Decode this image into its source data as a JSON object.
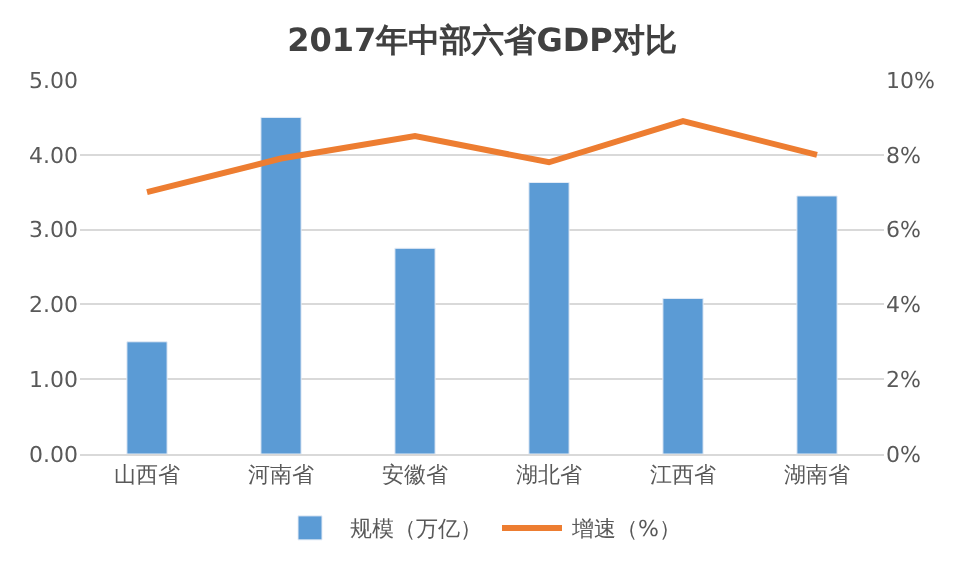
{
  "chart_data": {
    "type": "bar",
    "title": "2017年中部六省GDP对比",
    "categories": [
      "山西省",
      "河南省",
      "安徽省",
      "湖北省",
      "江西省",
      "湖南省"
    ],
    "series": [
      {
        "name": "规模（万亿）",
        "color": "#5b9bd5",
        "values": [
          1.5,
          4.5,
          2.75,
          3.63,
          2.08,
          3.45
        ]
      },
      {
        "name": "增速（%）",
        "color": "#ed7d31",
        "type": "line",
        "axis": "y2",
        "marker": "none",
        "values": [
          7.0,
          7.9,
          8.5,
          7.8,
          8.9,
          8.0
        ]
      }
    ],
    "ylim": [
      0,
      5
    ],
    "yticks": [
      {
        "value": 0,
        "label": "0.00"
      },
      {
        "value": 1,
        "label": "1.00"
      },
      {
        "value": 2,
        "label": "2.00"
      },
      {
        "value": 3,
        "label": "3.00"
      },
      {
        "value": 4,
        "label": "4.00"
      },
      {
        "value": 5,
        "label": "5.00"
      }
    ],
    "y2lim": [
      0,
      10
    ],
    "y2ticks": [
      {
        "value": 0,
        "label": "0%"
      },
      {
        "value": 2,
        "label": "2%"
      },
      {
        "value": 4,
        "label": "4%"
      },
      {
        "value": 6,
        "label": "6%"
      },
      {
        "value": 8,
        "label": "8%"
      },
      {
        "value": 10,
        "label": "10%"
      }
    ],
    "grid": "y",
    "legend": "bottom"
  }
}
